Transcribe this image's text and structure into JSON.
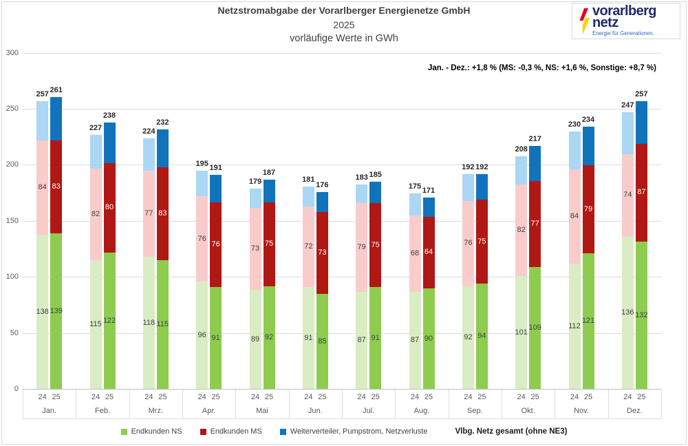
{
  "header": {
    "title": "Netzstromabgabe der Vorarlberger Energienetze GmbH",
    "year": "2025",
    "subtitle": "vorläufige Werte in GWh"
  },
  "logo": {
    "line1": "vorarlberg",
    "line2": "netz",
    "tagline": "Energie für Generationen."
  },
  "annotation": "Jan. - Dez.: +1,8 % (MS: -0,3 %, NS: +1,6 %, Sonstige: +8,7 %)",
  "legend": {
    "items": [
      {
        "label": "Endkunden NS",
        "color": "#8ECC4F"
      },
      {
        "label": "Endkunden MS",
        "color": "#B01814"
      },
      {
        "label": "Weiterverteiler, Pumpstrom, Netzverluste",
        "color": "#1273BD"
      }
    ],
    "total_label": "Vlbg. Netz gesamt (ohne NE3)"
  },
  "chart_data": {
    "type": "bar",
    "stacked": true,
    "unit": "GWh",
    "title": "Netzstromabgabe der Vorarlberger Energienetze GmbH 2025, vorläufige Werte in GWh",
    "ylim": [
      0,
      300
    ],
    "yticks": [
      0,
      50,
      100,
      150,
      200,
      250,
      300
    ],
    "grid": true,
    "legend_position": "bottom",
    "bar_year_labels": [
      "24",
      "25"
    ],
    "categories": [
      "Jan.",
      "Feb.",
      "Mrz.",
      "Apr.",
      "Mai",
      "Jun.",
      "Jul.",
      "Aug.",
      "Sep.",
      "Okt.",
      "Nov.",
      "Dez."
    ],
    "series": [
      {
        "name": "Endkunden NS",
        "year": "24",
        "role": "ns",
        "values": [
          138,
          115,
          118,
          96,
          89,
          91,
          87,
          87,
          92,
          101,
          112,
          136
        ]
      },
      {
        "name": "Endkunden MS",
        "year": "24",
        "role": "ms",
        "values": [
          84,
          82,
          77,
          76,
          73,
          72,
          79,
          68,
          76,
          82,
          84,
          74
        ]
      },
      {
        "name": "Weiterverteiler, Pumpstrom, Netzverluste",
        "year": "24",
        "role": "wv",
        "values": [
          35,
          30,
          29,
          23,
          17,
          18,
          17,
          20,
          24,
          25,
          34,
          37
        ]
      },
      {
        "name": "Endkunden NS",
        "year": "25",
        "role": "ns",
        "values": [
          139,
          122,
          115,
          91,
          92,
          85,
          91,
          90,
          94,
          109,
          121,
          132
        ]
      },
      {
        "name": "Endkunden MS",
        "year": "25",
        "role": "ms",
        "values": [
          83,
          80,
          83,
          76,
          75,
          73,
          75,
          64,
          75,
          77,
          79,
          87
        ]
      },
      {
        "name": "Weiterverteiler, Pumpstrom, Netzverluste",
        "year": "25",
        "role": "wv",
        "values": [
          39,
          36,
          34,
          24,
          20,
          18,
          19,
          17,
          23,
          31,
          34,
          38
        ]
      }
    ],
    "totals": {
      "y24": [
        257,
        227,
        224,
        195,
        179,
        181,
        183,
        175,
        192,
        208,
        230,
        247
      ],
      "y25": [
        261,
        238,
        232,
        191,
        187,
        176,
        185,
        171,
        192,
        217,
        234,
        257
      ]
    },
    "colors": {
      "y24": {
        "ns": "#D9ECC3",
        "ms": "#F9CBCB",
        "wv": "#ABD6F4"
      },
      "y25": {
        "ns": "#8ECC4F",
        "ms": "#B01814",
        "wv": "#1273BD"
      },
      "gridline": "#DCDCDC",
      "zero_line": "#BFBFBF",
      "axis_text": "#595959"
    }
  }
}
